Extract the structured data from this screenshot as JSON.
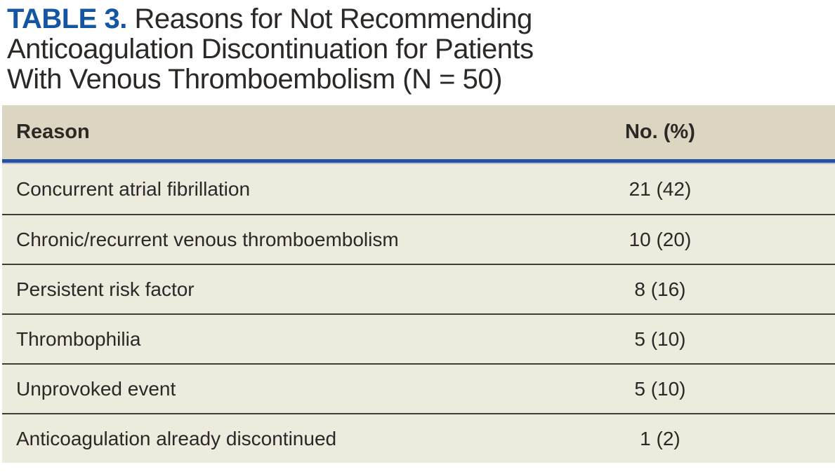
{
  "title": {
    "label": "TABLE 3.",
    "line1": "Reasons for Not Recommending",
    "line2": "Anticoagulation Discontinuation for Patients",
    "line3": "With Venous Thromboembolism (N = 50)"
  },
  "table": {
    "columns": {
      "reason": "Reason",
      "value": "No. (%)"
    },
    "rows": [
      {
        "reason": "Concurrent atrial fibrillation",
        "value": "21 (42)"
      },
      {
        "reason": "Chronic/recurrent venous thromboembolism",
        "value": "10 (20)"
      },
      {
        "reason": "Persistent risk factor",
        "value": "8 (16)"
      },
      {
        "reason": "Thrombophilia",
        "value": "5 (10)"
      },
      {
        "reason": "Unprovoked event",
        "value": "5 (10)"
      },
      {
        "reason": "Anticoagulation already discontinued",
        "value": "1 (2)"
      }
    ]
  },
  "colors": {
    "title_accent": "#1456a4",
    "header_bg": "#dcd5c1",
    "row_bg": "#edeade",
    "rule_blue": "#2251a0",
    "rule_blue_light": "#b4bfd7",
    "row_divider": "#403c39",
    "text": "#2b2826"
  }
}
